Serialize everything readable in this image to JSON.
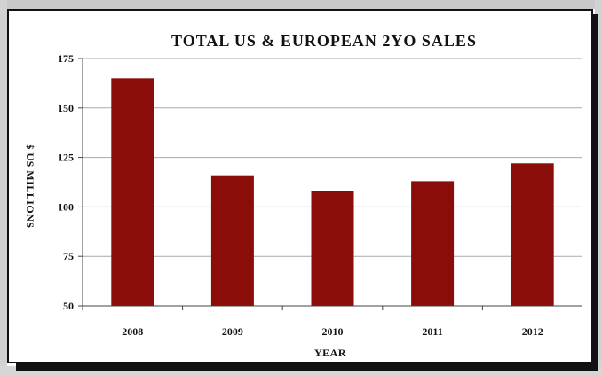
{
  "chart_data": {
    "type": "bar",
    "title": "TOTAL US & EUROPEAN 2YO SALES",
    "xlabel": "YEAR",
    "ylabel": "$ US MILLIONS",
    "categories": [
      "2008",
      "2009",
      "2010",
      "2011",
      "2012"
    ],
    "values": [
      165,
      116,
      108,
      113,
      122
    ],
    "ylim": [
      50,
      175
    ],
    "yticks": [
      "50",
      "75",
      "100",
      "125",
      "150",
      "175"
    ],
    "grid": true,
    "bar_color": "#8b0d0a",
    "grid_color": "#a9a9a9"
  }
}
